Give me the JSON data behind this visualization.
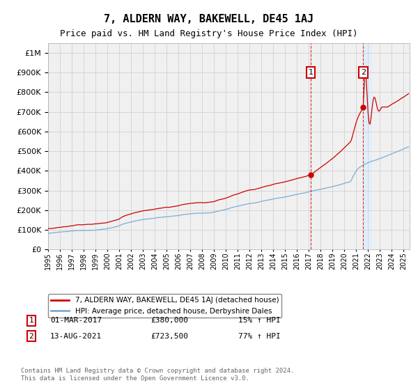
{
  "title": "7, ALDERN WAY, BAKEWELL, DE45 1AJ",
  "subtitle": "Price paid vs. HM Land Registry's House Price Index (HPI)",
  "ytick_values": [
    0,
    100000,
    200000,
    300000,
    400000,
    500000,
    600000,
    700000,
    800000,
    900000,
    1000000
  ],
  "ylim": [
    0,
    1050000
  ],
  "hpi_color": "#7aadd4",
  "price_color": "#cc0000",
  "t1": 2017.167,
  "t2": 2021.583,
  "sale1_price": 380000,
  "sale2_price": 723500,
  "annotation1_label": "1",
  "annotation2_label": "2",
  "legend_property": "7, ALDERN WAY, BAKEWELL, DE45 1AJ (detached house)",
  "legend_hpi": "HPI: Average price, detached house, Derbyshire Dales",
  "row1_date": "01-MAR-2017",
  "row1_price": "£380,000",
  "row1_hpi": "15% ↑ HPI",
  "row2_date": "13-AUG-2021",
  "row2_price": "£723,500",
  "row2_hpi": "77% ↑ HPI",
  "footer": "Contains HM Land Registry data © Crown copyright and database right 2024.\nThis data is licensed under the Open Government Licence v3.0.",
  "background_color": "#ffffff",
  "plot_bg_color": "#f0f0f0",
  "grid_color": "#cccccc",
  "shade_color": "#ddeeff",
  "title_fontsize": 11,
  "subtitle_fontsize": 9
}
